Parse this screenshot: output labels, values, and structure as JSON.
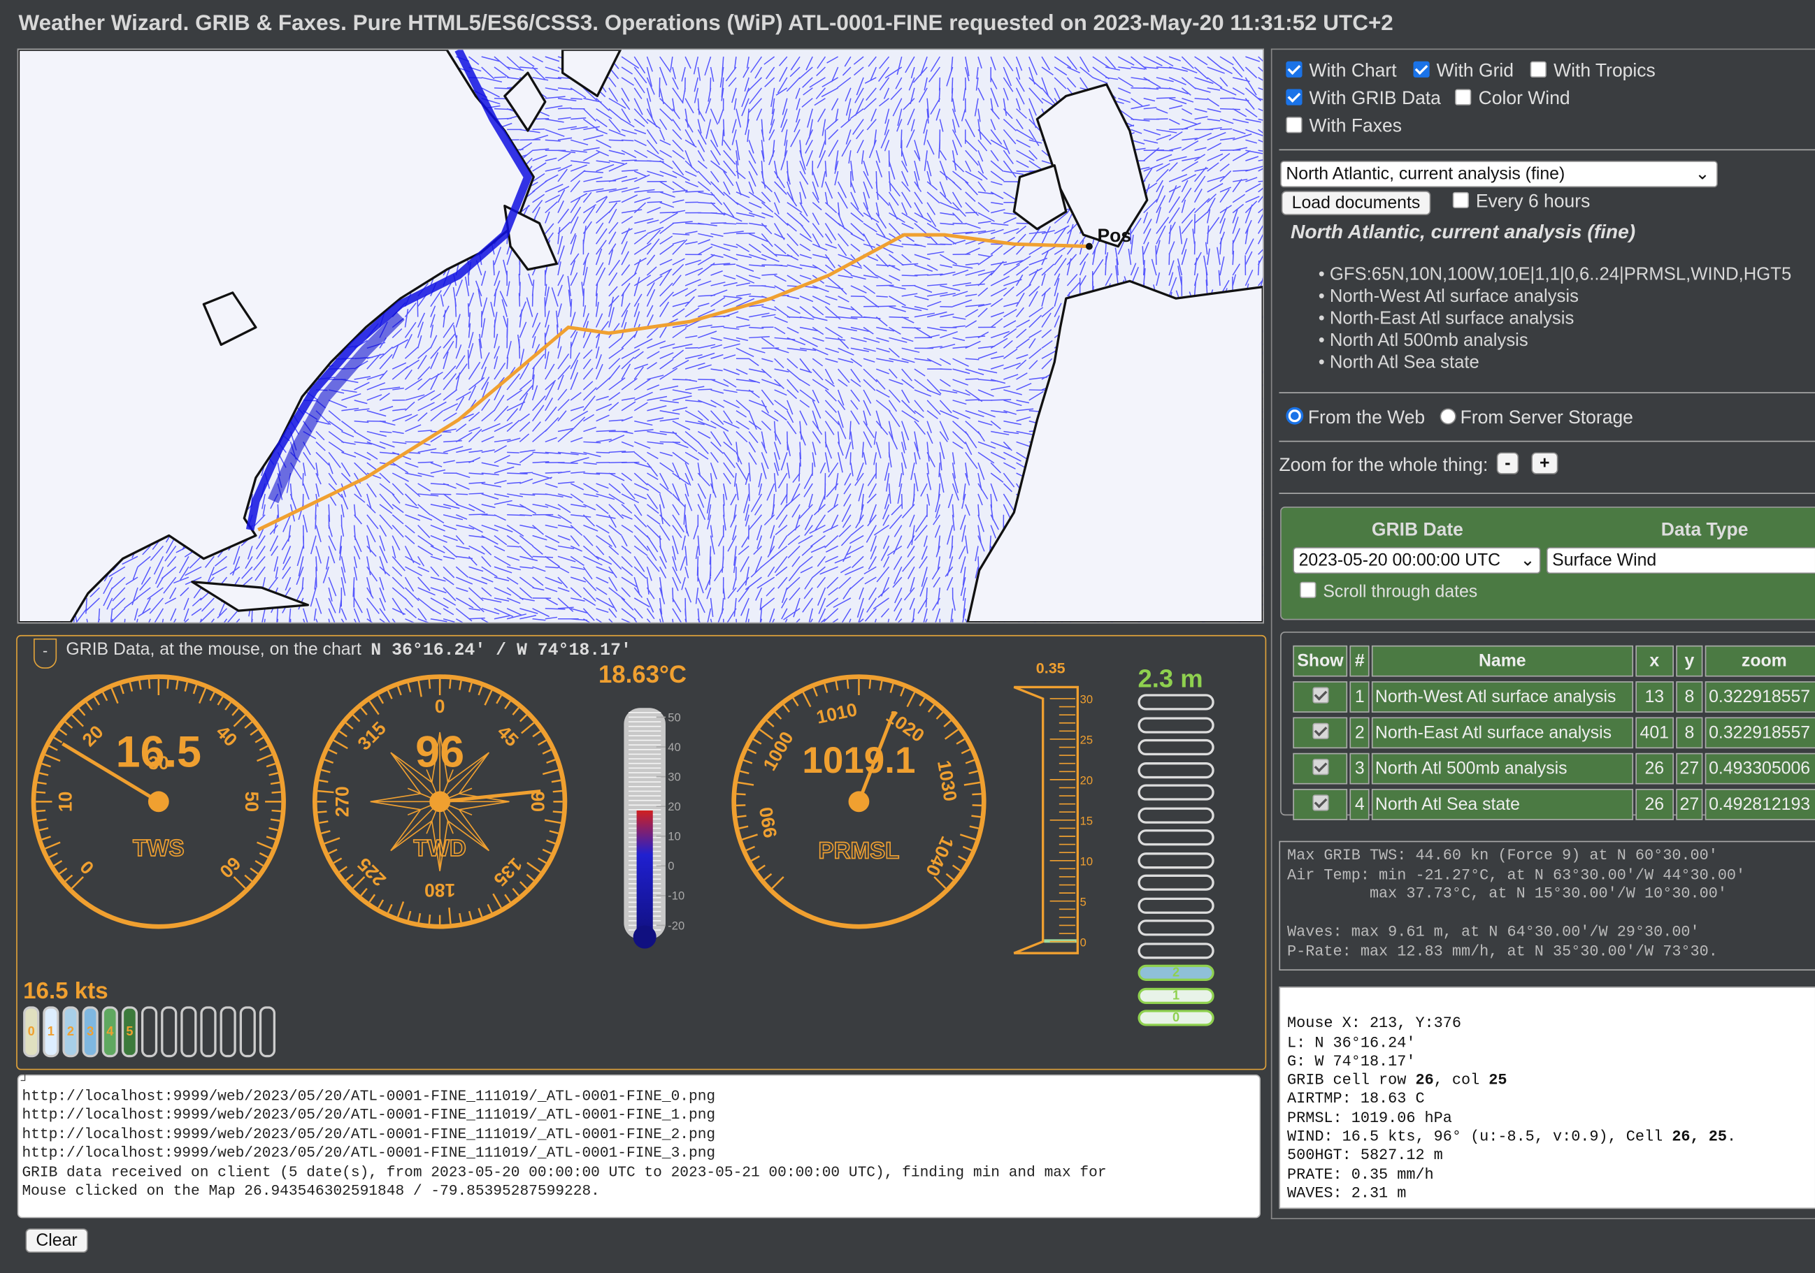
{
  "header": {
    "title": "Weather Wizard. GRIB & Faxes. Pure HTML5/ES6/CSS3. Operations (WiP) ATL-0001-FINE requested on 2023-May-20 11:31:52 UTC+2"
  },
  "map": {
    "position_label": "Pos",
    "colors": {
      "wind": "#2323ff",
      "route": "#f0a030",
      "coast": "#111111"
    }
  },
  "grib_panel": {
    "collapse_label": "-",
    "caption": "GRIB Data, at the mouse, on the chart",
    "position": "N 36°16.24' / W 74°18.17'",
    "tws": {
      "value": "16.5",
      "label": "TWS",
      "ticks": [
        "0",
        "10",
        "20",
        "30",
        "40",
        "50",
        "60"
      ]
    },
    "twd": {
      "value": "96",
      "label": "TWD",
      "ticks": [
        "0",
        "45",
        "90",
        "135",
        "180",
        "225",
        "270",
        "315"
      ]
    },
    "air_temp": {
      "value": "18.63°C",
      "ticks": [
        "50",
        "40",
        "30",
        "20",
        "10",
        "0",
        "-10",
        "-20"
      ],
      "level_c": 18.63
    },
    "prmsl": {
      "value": "1019.1",
      "label": "PRMSL",
      "ticks": [
        "990",
        "1000",
        "1010",
        "1020",
        "1030",
        "1040"
      ]
    },
    "rain": {
      "top_label": "0.35",
      "ticks": [
        "30",
        "25",
        "20",
        "15",
        "10",
        "5",
        "0"
      ]
    },
    "waves": {
      "value": "2.3 m",
      "levels": [
        "2",
        "1",
        "0"
      ]
    },
    "beaufort": {
      "value": "16.5 kts",
      "levels": [
        "0",
        "1",
        "2",
        "3",
        "4",
        "5"
      ]
    }
  },
  "log": {
    "lines": [
      "http://localhost:9999/web/2023/05/20/ATL-0001-FINE_111019/_ATL-0001-FINE_0.png",
      "http://localhost:9999/web/2023/05/20/ATL-0001-FINE_111019/_ATL-0001-FINE_1.png",
      "http://localhost:9999/web/2023/05/20/ATL-0001-FINE_111019/_ATL-0001-FINE_2.png",
      "http://localhost:9999/web/2023/05/20/ATL-0001-FINE_111019/_ATL-0001-FINE_3.png",
      "GRIB data received on client (5 date(s), from 2023-05-20 00:00:00 UTC to 2023-05-21 00:00:00 UTC), finding min and max for",
      "Mouse clicked on the Map 26.943546302591848 / -79.85395287599228."
    ],
    "clear_label": "Clear"
  },
  "options": {
    "with_chart": "With Chart",
    "with_grid": "With Grid",
    "with_tropics": "With Tropics",
    "with_grib": "With GRIB Data",
    "color_wind": "Color Wind",
    "with_faxes": "With Faxes"
  },
  "documents": {
    "selected": "North Atlantic, current analysis (fine)",
    "load_label": "Load documents",
    "every6": "Every 6 hours",
    "heading": "North Atlantic, current analysis (fine)",
    "items": [
      "GFS:65N,10N,100W,10E|1,1|0,6..24|PRMSL,WIND,HGT5",
      "North-West Atl surface analysis",
      "North-East Atl surface analysis",
      "North Atl 500mb analysis",
      "North Atl Sea state"
    ]
  },
  "source": {
    "web": "From the Web",
    "storage": "From Server Storage"
  },
  "zoom": {
    "label": "Zoom for the whole thing:",
    "minus": "-",
    "plus": "+"
  },
  "grib_select": {
    "date_header": "GRIB Date",
    "type_header": "Data Type",
    "date_value": "2023-05-20 00:00:00 UTC",
    "type_value": "Surface Wind",
    "scroll": "Scroll through dates"
  },
  "faxes_table": {
    "headers": [
      "Show",
      "#",
      "Name",
      "x",
      "y",
      "zoom"
    ],
    "rows": [
      [
        "1",
        "North-West Atl surface analysis",
        "13",
        "8",
        "0.322918557"
      ],
      [
        "2",
        "North-East Atl surface analysis",
        "401",
        "8",
        "0.322918557"
      ],
      [
        "3",
        "North Atl 500mb analysis",
        "26",
        "27",
        "0.493305006"
      ],
      [
        "4",
        "North Atl Sea state",
        "26",
        "27",
        "0.492812193"
      ]
    ]
  },
  "stats": {
    "lines": [
      "Max GRIB TWS: 44.60 kn (Force 9) at N 60°30.00'",
      "Air Temp: min -21.27°C, at N 63°30.00'/W 44°30.00'",
      "         max 37.73°C, at N 15°30.00'/W 10°30.00'",
      "",
      "Waves: max 9.61 m, at N 64°30.00'/W 29°30.00'",
      "P-Rate: max 12.83 mm/h, at N 35°30.00'/W 73°30."
    ]
  },
  "mouse": {
    "xy": "Mouse X: 213, Y:376",
    "lat": "L: N 36°16.24'",
    "lng": "G: W 74°18.17'",
    "cell_prefix": "GRIB cell row ",
    "cell_row": "26",
    "cell_mid": ", col ",
    "cell_col": "25",
    "airtmp": "AIRTMP: 18.63 C",
    "prmsl": "PRMSL: 1019.06 hPa",
    "wind_prefix": "WIND: 16.5 kts, 96° (u:-8.5, v:0.9), Cell ",
    "wind_cell": "26, 25",
    "wind_suffix": ".",
    "hgt": "500HGT: 5827.12 m",
    "prate": "PRATE: 0.35 mm/h",
    "waves": "WAVES: 2.31 m"
  }
}
